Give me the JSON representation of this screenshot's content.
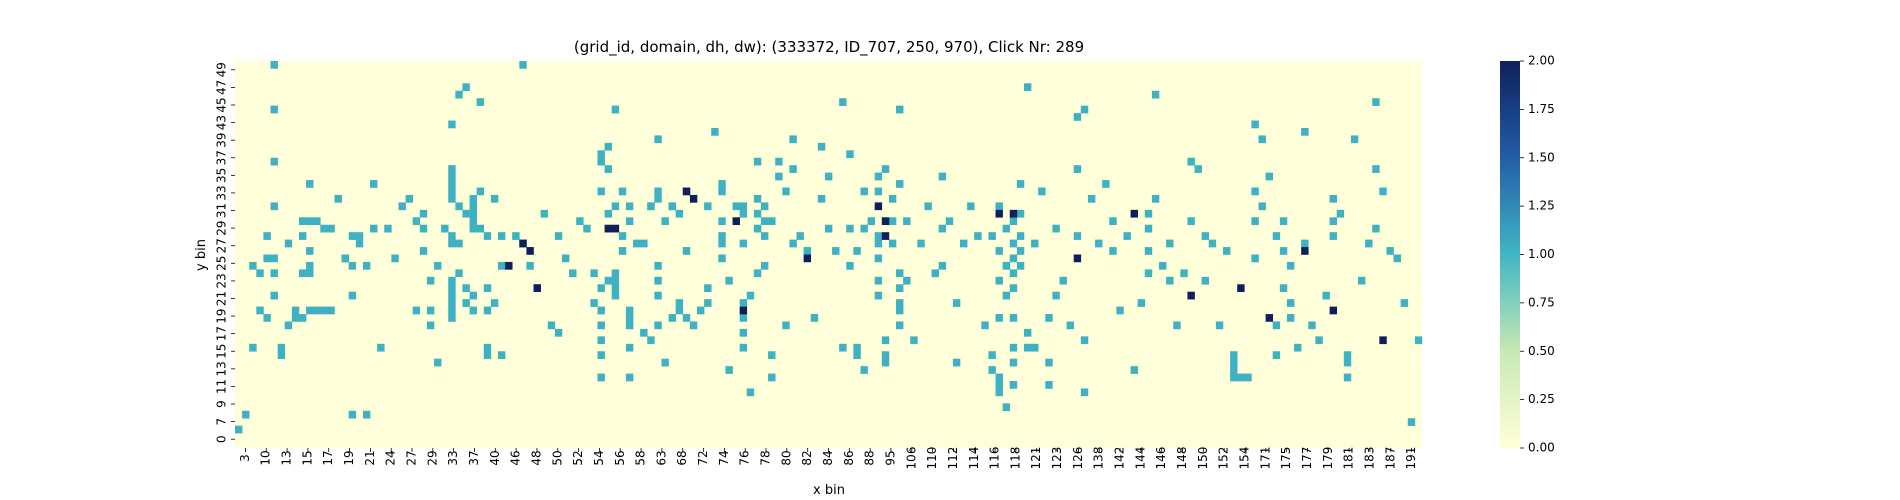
{
  "chart_data": {
    "type": "heatmap",
    "title": "(grid_id, domain, dh, dw): (333372, ID_707, 250, 970), Click Nr: 289",
    "xlabel": "x bin",
    "ylabel": "y bin",
    "x_tick_labels": [
      "3",
      "10",
      "13",
      "15",
      "17",
      "19",
      "21",
      "24",
      "27",
      "29",
      "33",
      "37",
      "40",
      "46",
      "48",
      "50",
      "52",
      "54",
      "56",
      "58",
      "63",
      "68",
      "72",
      "74",
      "76",
      "78",
      "80",
      "82",
      "84",
      "86",
      "88",
      "95",
      "106",
      "110",
      "112",
      "114",
      "116",
      "118",
      "121",
      "123",
      "126",
      "138",
      "142",
      "144",
      "146",
      "148",
      "150",
      "152",
      "154",
      "171",
      "175",
      "177",
      "179",
      "181",
      "183",
      "187",
      "191"
    ],
    "y_tick_labels": [
      "0",
      "7",
      "9",
      "11",
      "13",
      "15",
      "17",
      "19",
      "21",
      "23",
      "25",
      "27",
      "29",
      "31",
      "33",
      "35",
      "37",
      "39",
      "43",
      "45",
      "47",
      "49"
    ],
    "value_range": [
      0,
      2
    ],
    "colorbar": {
      "ticks": [
        "0.00",
        "0.25",
        "0.50",
        "0.75",
        "1.00",
        "1.25",
        "1.50",
        "1.75",
        "2.00"
      ],
      "colormap": "YlGnBu"
    },
    "colors": {
      "low": "#ffffd9",
      "mid": "#3eb2c3",
      "high": "#0f1f5c"
    },
    "cells_value_1": [
      [
        0,
        2
      ],
      [
        1,
        4
      ],
      [
        2,
        13
      ],
      [
        2,
        24
      ],
      [
        3,
        18
      ],
      [
        3,
        23
      ],
      [
        4,
        28
      ],
      [
        4,
        25
      ],
      [
        4,
        17
      ],
      [
        5,
        23
      ],
      [
        5,
        25
      ],
      [
        5,
        20
      ],
      [
        5,
        45
      ],
      [
        5,
        51
      ],
      [
        5,
        38
      ],
      [
        5,
        32
      ],
      [
        6,
        13
      ],
      [
        6,
        12
      ],
      [
        7,
        16
      ],
      [
        7,
        27
      ],
      [
        8,
        17
      ],
      [
        8,
        18
      ],
      [
        9,
        28
      ],
      [
        9,
        30
      ],
      [
        9,
        23
      ],
      [
        9,
        17
      ],
      [
        10,
        35
      ],
      [
        10,
        30
      ],
      [
        10,
        26
      ],
      [
        10,
        24
      ],
      [
        10,
        23
      ],
      [
        10,
        18
      ],
      [
        11,
        30
      ],
      [
        11,
        18
      ],
      [
        12,
        29
      ],
      [
        12,
        18
      ],
      [
        13,
        29
      ],
      [
        13,
        18
      ],
      [
        14,
        33
      ],
      [
        15,
        25
      ],
      [
        15,
        25
      ],
      [
        16,
        24
      ],
      [
        16,
        20
      ],
      [
        16,
        28
      ],
      [
        16,
        4
      ],
      [
        17,
        27
      ],
      [
        17,
        28
      ],
      [
        18,
        24
      ],
      [
        18,
        4
      ],
      [
        19,
        29
      ],
      [
        19,
        35
      ],
      [
        20,
        13
      ],
      [
        21,
        29
      ],
      [
        22,
        25
      ],
      [
        23,
        32
      ],
      [
        24,
        33
      ],
      [
        25,
        30
      ],
      [
        25,
        18
      ],
      [
        26,
        31
      ],
      [
        26,
        26
      ],
      [
        26,
        29
      ],
      [
        27,
        22
      ],
      [
        27,
        18
      ],
      [
        27,
        16
      ],
      [
        28,
        24
      ],
      [
        28,
        11
      ],
      [
        29,
        29
      ],
      [
        30,
        27
      ],
      [
        30,
        43
      ],
      [
        30,
        18
      ],
      [
        30,
        35
      ],
      [
        30,
        36
      ],
      [
        30,
        37
      ],
      [
        30,
        33
      ],
      [
        30,
        34
      ],
      [
        30,
        28
      ],
      [
        30,
        22
      ],
      [
        30,
        21
      ],
      [
        30,
        20
      ],
      [
        30,
        17
      ],
      [
        30,
        19
      ],
      [
        31,
        27
      ],
      [
        31,
        23
      ],
      [
        31,
        32
      ],
      [
        31,
        47
      ],
      [
        32,
        19
      ],
      [
        32,
        31
      ],
      [
        32,
        48
      ],
      [
        32,
        21
      ],
      [
        33,
        33
      ],
      [
        33,
        32
      ],
      [
        33,
        30
      ],
      [
        33,
        31
      ],
      [
        33,
        29
      ],
      [
        33,
        20
      ],
      [
        33,
        18
      ],
      [
        34,
        34
      ],
      [
        34,
        46
      ],
      [
        34,
        29
      ],
      [
        35,
        28
      ],
      [
        35,
        21
      ],
      [
        35,
        18
      ],
      [
        35,
        13
      ],
      [
        35,
        12
      ],
      [
        36,
        19
      ],
      [
        36,
        33
      ],
      [
        37,
        28
      ],
      [
        37,
        24
      ],
      [
        37,
        12
      ],
      [
        39,
        28
      ],
      [
        40,
        27
      ],
      [
        40,
        51
      ],
      [
        41,
        24
      ],
      [
        42,
        21
      ],
      [
        43,
        31
      ],
      [
        44,
        16
      ],
      [
        45,
        15
      ],
      [
        45,
        28
      ],
      [
        46,
        25
      ],
      [
        47,
        23
      ],
      [
        48,
        30
      ],
      [
        49,
        29
      ],
      [
        50,
        23
      ],
      [
        50,
        19
      ],
      [
        51,
        34
      ],
      [
        51,
        12
      ],
      [
        51,
        14
      ],
      [
        51,
        16
      ],
      [
        51,
        18
      ],
      [
        51,
        21
      ],
      [
        51,
        38
      ],
      [
        51,
        39
      ],
      [
        51,
        9
      ],
      [
        52,
        37
      ],
      [
        52,
        40
      ],
      [
        52,
        22
      ],
      [
        52,
        31
      ],
      [
        53,
        20
      ],
      [
        53,
        21
      ],
      [
        53,
        22
      ],
      [
        53,
        23
      ],
      [
        53,
        32
      ],
      [
        53,
        45
      ],
      [
        54,
        34
      ],
      [
        54,
        26
      ],
      [
        54,
        28
      ],
      [
        55,
        32
      ],
      [
        55,
        30
      ],
      [
        55,
        16
      ],
      [
        55,
        17
      ],
      [
        55,
        18
      ],
      [
        55,
        13
      ],
      [
        55,
        9
      ],
      [
        56,
        27
      ],
      [
        57,
        27
      ],
      [
        57,
        15
      ],
      [
        58,
        32
      ],
      [
        58,
        32
      ],
      [
        58,
        14
      ],
      [
        59,
        41
      ],
      [
        59,
        33
      ],
      [
        59,
        34
      ],
      [
        59,
        24
      ],
      [
        59,
        22
      ],
      [
        59,
        20
      ],
      [
        59,
        16
      ],
      [
        60,
        11
      ],
      [
        60,
        30
      ],
      [
        61,
        32
      ],
      [
        61,
        32
      ],
      [
        61,
        17
      ],
      [
        62,
        31
      ],
      [
        62,
        19
      ],
      [
        62,
        18
      ],
      [
        63,
        34
      ],
      [
        63,
        26
      ],
      [
        63,
        17
      ],
      [
        64,
        16
      ],
      [
        65,
        18
      ],
      [
        66,
        32
      ],
      [
        66,
        21
      ],
      [
        66,
        19
      ],
      [
        67,
        42
      ],
      [
        68,
        35
      ],
      [
        68,
        34
      ],
      [
        68,
        30
      ],
      [
        68,
        28
      ],
      [
        68,
        27
      ],
      [
        68,
        25
      ],
      [
        69,
        10
      ],
      [
        69,
        22
      ],
      [
        70,
        32
      ],
      [
        71,
        27
      ],
      [
        71,
        32
      ],
      [
        71,
        31
      ],
      [
        71,
        19
      ],
      [
        71,
        17
      ],
      [
        71,
        15
      ],
      [
        71,
        13
      ],
      [
        72,
        20
      ],
      [
        72,
        7
      ],
      [
        73,
        38
      ],
      [
        73,
        23
      ],
      [
        73,
        29
      ],
      [
        73,
        31
      ],
      [
        73,
        33
      ],
      [
        74,
        32
      ],
      [
        74,
        30
      ],
      [
        74,
        28
      ],
      [
        74,
        24
      ],
      [
        75,
        30
      ],
      [
        75,
        12
      ],
      [
        75,
        9
      ],
      [
        76,
        36
      ],
      [
        76,
        38
      ],
      [
        77,
        34
      ],
      [
        77,
        16
      ],
      [
        78,
        41
      ],
      [
        78,
        37
      ],
      [
        78,
        27
      ],
      [
        79,
        28
      ],
      [
        80,
        26
      ],
      [
        81,
        17
      ],
      [
        82,
        33
      ],
      [
        82,
        40
      ],
      [
        83,
        36
      ],
      [
        83,
        29
      ],
      [
        84,
        26
      ],
      [
        85,
        46
      ],
      [
        85,
        13
      ],
      [
        86,
        39
      ],
      [
        86,
        29
      ],
      [
        86,
        24
      ],
      [
        87,
        26
      ],
      [
        87,
        12
      ],
      [
        87,
        13
      ],
      [
        88,
        34
      ],
      [
        88,
        29
      ],
      [
        88,
        10
      ],
      [
        89,
        30
      ],
      [
        90,
        36
      ],
      [
        90,
        34
      ],
      [
        90,
        28
      ],
      [
        90,
        27
      ],
      [
        90,
        25
      ],
      [
        90,
        22
      ],
      [
        90,
        20
      ],
      [
        91,
        37
      ],
      [
        91,
        12
      ],
      [
        91,
        14
      ],
      [
        91,
        11
      ],
      [
        92,
        33
      ],
      [
        92,
        30
      ],
      [
        92,
        27
      ],
      [
        93,
        45
      ],
      [
        93,
        35
      ],
      [
        93,
        23
      ],
      [
        93,
        21
      ],
      [
        93,
        19
      ],
      [
        93,
        18
      ],
      [
        93,
        16
      ],
      [
        94,
        30
      ],
      [
        94,
        22
      ],
      [
        95,
        14
      ],
      [
        96,
        27
      ],
      [
        97,
        32
      ],
      [
        98,
        23
      ],
      [
        99,
        36
      ],
      [
        99,
        29
      ],
      [
        99,
        24
      ],
      [
        100,
        30
      ],
      [
        101,
        19
      ],
      [
        101,
        11
      ],
      [
        102,
        27
      ],
      [
        103,
        32
      ],
      [
        104,
        28
      ],
      [
        105,
        16
      ],
      [
        106,
        28
      ],
      [
        106,
        12
      ],
      [
        106,
        10
      ],
      [
        107,
        32
      ],
      [
        107,
        26
      ],
      [
        107,
        22
      ],
      [
        107,
        17
      ],
      [
        107,
        9
      ],
      [
        107,
        8
      ],
      [
        107,
        7
      ],
      [
        108,
        29
      ],
      [
        108,
        24
      ],
      [
        108,
        20
      ],
      [
        108,
        5
      ],
      [
        109,
        30
      ],
      [
        109,
        27
      ],
      [
        109,
        25
      ],
      [
        109,
        23
      ],
      [
        109,
        21
      ],
      [
        109,
        17
      ],
      [
        109,
        13
      ],
      [
        109,
        11
      ],
      [
        109,
        8
      ],
      [
        110,
        35
      ],
      [
        110,
        31
      ],
      [
        110,
        28
      ],
      [
        110,
        26
      ],
      [
        110,
        24
      ],
      [
        111,
        48
      ],
      [
        111,
        13
      ],
      [
        111,
        15
      ],
      [
        112,
        27
      ],
      [
        112,
        13
      ],
      [
        113,
        34
      ],
      [
        114,
        8
      ],
      [
        114,
        11
      ],
      [
        114,
        17
      ],
      [
        115,
        20
      ],
      [
        115,
        29
      ],
      [
        116,
        22
      ],
      [
        117,
        16
      ],
      [
        118,
        28
      ],
      [
        118,
        37
      ],
      [
        118,
        44
      ],
      [
        119,
        7
      ],
      [
        119,
        14
      ],
      [
        119,
        45
      ],
      [
        120,
        33
      ],
      [
        121,
        27
      ],
      [
        122,
        35
      ],
      [
        123,
        30
      ],
      [
        123,
        26
      ],
      [
        124,
        18
      ],
      [
        125,
        28
      ],
      [
        126,
        10
      ],
      [
        127,
        19
      ],
      [
        128,
        26
      ],
      [
        128,
        23
      ],
      [
        128,
        29
      ],
      [
        128,
        31
      ],
      [
        129,
        33
      ],
      [
        129,
        47
      ],
      [
        130,
        24
      ],
      [
        131,
        27
      ],
      [
        131,
        22
      ],
      [
        132,
        16
      ],
      [
        133,
        23
      ],
      [
        134,
        30
      ],
      [
        134,
        38
      ],
      [
        135,
        37
      ],
      [
        136,
        28
      ],
      [
        136,
        22
      ],
      [
        137,
        27
      ],
      [
        138,
        16
      ],
      [
        139,
        26
      ],
      [
        140,
        12
      ],
      [
        140,
        11
      ],
      [
        140,
        10
      ],
      [
        140,
        9
      ],
      [
        141,
        9
      ],
      [
        142,
        9
      ],
      [
        143,
        25
      ],
      [
        143,
        30
      ],
      [
        143,
        34
      ],
      [
        143,
        43
      ],
      [
        144,
        41
      ],
      [
        144,
        32
      ],
      [
        145,
        36
      ],
      [
        146,
        28
      ],
      [
        146,
        16
      ],
      [
        146,
        12
      ],
      [
        147,
        30
      ],
      [
        147,
        26
      ],
      [
        147,
        21
      ],
      [
        148,
        24
      ],
      [
        148,
        19
      ],
      [
        148,
        17
      ],
      [
        149,
        13
      ],
      [
        150,
        42
      ],
      [
        150,
        27
      ],
      [
        151,
        16
      ],
      [
        152,
        14
      ],
      [
        153,
        20
      ],
      [
        154,
        28
      ],
      [
        154,
        30
      ],
      [
        154,
        33
      ],
      [
        155,
        31
      ],
      [
        156,
        12
      ],
      [
        156,
        11
      ],
      [
        156,
        9
      ],
      [
        157,
        41
      ],
      [
        158,
        22
      ],
      [
        159,
        27
      ],
      [
        160,
        29
      ],
      [
        160,
        37
      ],
      [
        160,
        46
      ],
      [
        161,
        34
      ],
      [
        162,
        26
      ],
      [
        163,
        25
      ],
      [
        164,
        19
      ],
      [
        165,
        3
      ],
      [
        166,
        14
      ]
    ],
    "cells_value_2": [
      [
        38,
        24
      ],
      [
        40,
        27
      ],
      [
        41,
        26
      ],
      [
        42,
        21
      ],
      [
        52,
        29
      ],
      [
        53,
        29
      ],
      [
        63,
        34
      ],
      [
        64,
        33
      ],
      [
        70,
        30
      ],
      [
        71,
        18
      ],
      [
        80,
        25
      ],
      [
        90,
        32
      ],
      [
        91,
        30
      ],
      [
        91,
        28
      ],
      [
        107,
        31
      ],
      [
        109,
        31
      ],
      [
        118,
        25
      ],
      [
        126,
        31
      ],
      [
        134,
        20
      ],
      [
        141,
        21
      ],
      [
        145,
        17
      ],
      [
        150,
        26
      ],
      [
        154,
        18
      ],
      [
        161,
        14
      ]
    ]
  }
}
